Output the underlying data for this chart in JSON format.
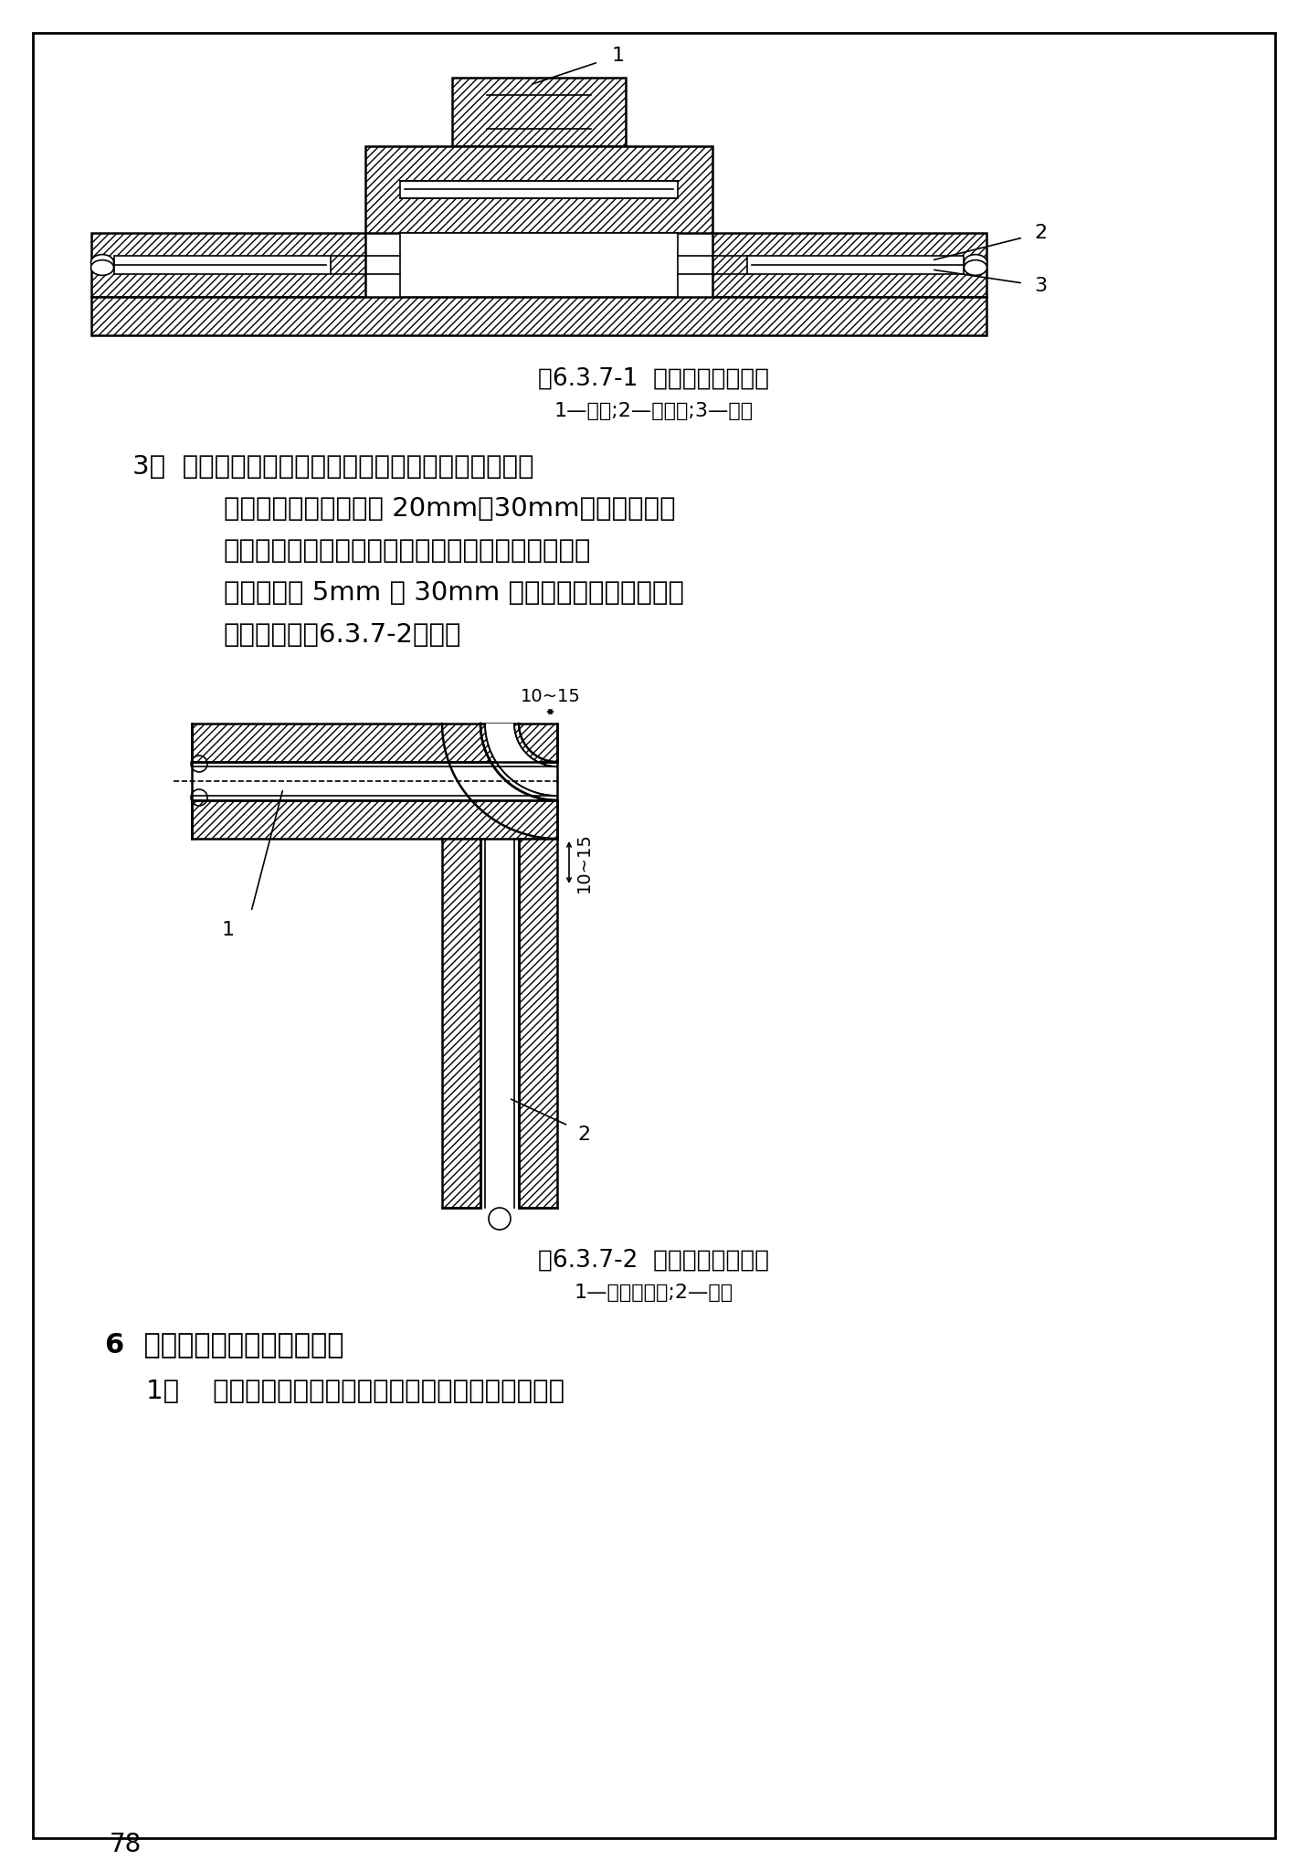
{
  "bg_color": "#ffffff",
  "fig1_caption": "图6.3.7-1  阀门橡塑绝热示意",
  "fig1_legend": "1—阀门;2—保温层;3—管道",
  "fig2_caption": "图6.3.7-2  弯头橡塑绝热示意",
  "fig2_legend": "1—橡胶绝热板;2—管道",
  "section6_title": "6  管道防腐应符合下列要求：",
  "section6_item1": "1）    金属管道表面在刷油前必须去掉泥灰、浮锈、氧化",
  "page_number": "78",
  "item3_line1": "3）  管道弯头橡塑绝热保温应先测量管道直径及弧长，",
  "item3_line2": "外侧放样尺寸为弧长加 20mm～30mm，所有接缝用",
  "item3_line3": "专业胶水粘接牢固，粘接接缝应放在弯头内侧，接缝",
  "item3_line4": "外粘贴一道 5mm 厚 30mm 宽的橡胶板条加强密封，",
  "item3_line5": "具体做法按图6.3.7-2采用。",
  "dim_label1": "10~15",
  "dim_label2": "10~15"
}
